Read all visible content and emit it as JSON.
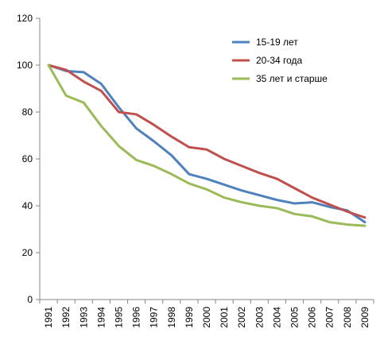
{
  "chart_data": {
    "type": "line",
    "x": [
      "1991",
      "1992",
      "1993",
      "1994",
      "1995",
      "1996",
      "1997",
      "1998",
      "1999",
      "2000",
      "2001",
      "2002",
      "2003",
      "2004",
      "2005",
      "2006",
      "2007",
      "2008",
      "2009"
    ],
    "series": [
      {
        "name": "15-19 лет",
        "color": "#4F81BD",
        "values": [
          100,
          97.5,
          97,
          92,
          82,
          73,
          67.5,
          61.5,
          53.5,
          51.5,
          49,
          46.5,
          44.5,
          42.5,
          41,
          41.5,
          39.5,
          38,
          33
        ]
      },
      {
        "name": "20-34 года",
        "color": "#C0504D",
        "values": [
          100,
          98,
          93,
          89,
          80,
          79,
          74.5,
          69.5,
          65,
          64,
          60,
          57,
          54,
          51.5,
          47.5,
          43.5,
          40.5,
          37.5,
          35
        ]
      },
      {
        "name": "35 лет и старше",
        "color": "#9BBB59",
        "values": [
          100,
          87,
          84,
          74,
          65.5,
          59.5,
          57,
          53.5,
          49.5,
          47,
          43.5,
          41.5,
          40,
          39,
          36.5,
          35.5,
          33,
          32,
          31.5
        ]
      }
    ],
    "title": "",
    "xlabel": "",
    "ylabel": "",
    "ylim": [
      0,
      120
    ],
    "yticks": [
      "0",
      "20",
      "40",
      "60",
      "80",
      "100",
      "120"
    ],
    "grid": false,
    "legend_position": "top-right"
  }
}
